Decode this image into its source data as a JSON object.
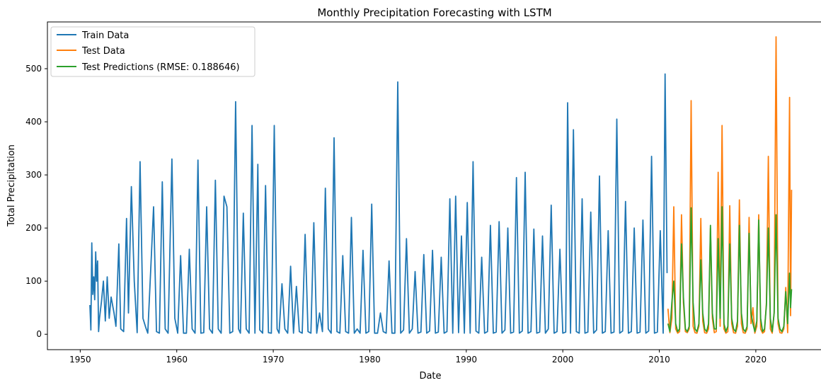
{
  "chart_data": {
    "type": "line",
    "title": "Monthly Precipitation Forecasting with LSTM",
    "xlabel": "Date",
    "ylabel": "Total Precipitation",
    "xlim": [
      1946.6,
      2026.9
    ],
    "ylim": [
      -29,
      588
    ],
    "xticks": [
      1950,
      1960,
      1970,
      1980,
      1990,
      2000,
      2010,
      2020
    ],
    "xtick_labels": [
      "1950",
      "1960",
      "1970",
      "1980",
      "1990",
      "2000",
      "2010",
      "2020"
    ],
    "yticks": [
      0,
      100,
      200,
      300,
      400,
      500
    ],
    "ytick_labels": [
      "0",
      "100",
      "200",
      "300",
      "400",
      "500"
    ],
    "grid": false,
    "legend_position": "top-left",
    "series": [
      {
        "name": "Train Data",
        "color": "#1f77b4",
        "x": [
          1951.0,
          1951.1,
          1951.2,
          1951.3,
          1951.4,
          1951.5,
          1951.6,
          1951.7,
          1951.8,
          1951.9,
          1952.0,
          1952.2,
          1952.4,
          1952.6,
          1952.8,
          1953.0,
          1953.2,
          1953.5,
          1953.7,
          1954.0,
          1954.2,
          1954.5,
          1954.8,
          1955.0,
          1955.3,
          1955.6,
          1955.9,
          1956.2,
          1956.5,
          1956.8,
          1957.0,
          1957.3,
          1957.6,
          1957.9,
          1958.2,
          1958.5,
          1958.8,
          1959.1,
          1959.5,
          1959.8,
          1960.1,
          1960.4,
          1960.7,
          1961.0,
          1961.3,
          1961.6,
          1961.9,
          1962.2,
          1962.5,
          1962.8,
          1963.1,
          1963.4,
          1963.7,
          1964.0,
          1964.3,
          1964.6,
          1964.9,
          1965.2,
          1965.5,
          1965.8,
          1966.1,
          1966.4,
          1966.6,
          1966.9,
          1967.2,
          1967.5,
          1967.8,
          1968.1,
          1968.4,
          1968.6,
          1968.9,
          1969.2,
          1969.5,
          1969.8,
          1970.1,
          1970.4,
          1970.6,
          1970.9,
          1971.2,
          1971.5,
          1971.8,
          1972.1,
          1972.4,
          1972.7,
          1973.0,
          1973.3,
          1973.6,
          1973.9,
          1974.2,
          1974.5,
          1974.8,
          1975.1,
          1975.4,
          1975.7,
          1976.0,
          1976.3,
          1976.6,
          1976.9,
          1977.2,
          1977.5,
          1977.8,
          1978.1,
          1978.4,
          1978.7,
          1979.0,
          1979.3,
          1979.6,
          1979.9,
          1980.2,
          1980.5,
          1980.8,
          1981.1,
          1981.4,
          1981.7,
          1982.0,
          1982.3,
          1982.6,
          1982.9,
          1983.2,
          1983.5,
          1983.8,
          1984.1,
          1984.4,
          1984.7,
          1985.0,
          1985.3,
          1985.6,
          1985.9,
          1986.2,
          1986.5,
          1986.8,
          1987.1,
          1987.4,
          1987.7,
          1988.0,
          1988.3,
          1988.6,
          1988.9,
          1989.2,
          1989.5,
          1989.8,
          1990.1,
          1990.4,
          1990.7,
          1991.0,
          1991.3,
          1991.6,
          1991.9,
          1992.2,
          1992.5,
          1992.8,
          1993.1,
          1993.4,
          1993.7,
          1994.0,
          1994.3,
          1994.6,
          1994.9,
          1995.2,
          1995.5,
          1995.8,
          1996.1,
          1996.4,
          1996.7,
          1997.0,
          1997.3,
          1997.6,
          1997.9,
          1998.2,
          1998.5,
          1998.8,
          1999.1,
          1999.4,
          1999.7,
          2000.0,
          2000.3,
          2000.5,
          2000.8,
          2001.1,
          2001.4,
          2001.7,
          2002.0,
          2002.3,
          2002.6,
          2002.9,
          2003.2,
          2003.5,
          2003.8,
          2004.1,
          2004.4,
          2004.7,
          2005.0,
          2005.3,
          2005.6,
          2005.9,
          2006.2,
          2006.5,
          2006.8,
          2007.1,
          2007.4,
          2007.7,
          2008.0,
          2008.3,
          2008.6,
          2008.9,
          2009.2,
          2009.5,
          2009.8,
          2010.1,
          2010.4,
          2010.6,
          2010.8
        ],
        "y": [
          55,
          8,
          172,
          75,
          108,
          65,
          155,
          100,
          138,
          5,
          30,
          62,
          100,
          25,
          108,
          30,
          70,
          40,
          15,
          170,
          10,
          5,
          218,
          40,
          278,
          100,
          3,
          325,
          30,
          12,
          2,
          120,
          240,
          5,
          2,
          287,
          10,
          2,
          330,
          30,
          2,
          148,
          2,
          2,
          160,
          10,
          2,
          328,
          2,
          3,
          240,
          10,
          2,
          290,
          10,
          2,
          260,
          240,
          2,
          5,
          438,
          10,
          2,
          228,
          10,
          2,
          393,
          2,
          320,
          8,
          2,
          280,
          3,
          2,
          393,
          10,
          2,
          95,
          10,
          2,
          128,
          2,
          90,
          5,
          2,
          188,
          5,
          2,
          210,
          2,
          40,
          5,
          275,
          10,
          2,
          370,
          5,
          2,
          148,
          5,
          2,
          220,
          2,
          10,
          2,
          158,
          2,
          5,
          245,
          2,
          2,
          40,
          5,
          2,
          138,
          2,
          2,
          475,
          2,
          8,
          180,
          2,
          10,
          118,
          2,
          4,
          150,
          2,
          6,
          158,
          2,
          4,
          145,
          2,
          5,
          255,
          2,
          260,
          3,
          185,
          2,
          248,
          2,
          325,
          6,
          2,
          145,
          2,
          5,
          205,
          2,
          4,
          212,
          2,
          8,
          200,
          2,
          4,
          295,
          2,
          6,
          305,
          2,
          5,
          198,
          2,
          4,
          185,
          2,
          10,
          243,
          2,
          5,
          160,
          2,
          4,
          436,
          2,
          385,
          5,
          2,
          255,
          2,
          4,
          230,
          2,
          8,
          298,
          2,
          5,
          195,
          2,
          4,
          405,
          2,
          6,
          250,
          2,
          5,
          200,
          2,
          4,
          215,
          2,
          6,
          335,
          2,
          4,
          195,
          2,
          490,
          115
        ]
      },
      {
        "name": "Test Data",
        "color": "#ff7f0e",
        "x": [
          2010.9,
          2011.1,
          2011.3,
          2011.5,
          2011.7,
          2011.9,
          2012.1,
          2012.3,
          2012.5,
          2012.7,
          2012.9,
          2013.1,
          2013.3,
          2013.5,
          2013.7,
          2013.9,
          2014.1,
          2014.3,
          2014.5,
          2014.7,
          2014.9,
          2015.1,
          2015.3,
          2015.5,
          2015.7,
          2015.9,
          2016.1,
          2016.3,
          2016.5,
          2016.7,
          2016.9,
          2017.1,
          2017.3,
          2017.5,
          2017.7,
          2017.9,
          2018.1,
          2018.3,
          2018.5,
          2018.7,
          2018.9,
          2019.1,
          2019.3,
          2019.5,
          2019.7,
          2019.9,
          2020.1,
          2020.3,
          2020.5,
          2020.7,
          2020.9,
          2021.1,
          2021.3,
          2021.5,
          2021.7,
          2021.9,
          2022.1,
          2022.3,
          2022.5,
          2022.7,
          2022.9,
          2023.1,
          2023.3,
          2023.5,
          2023.6,
          2023.7
        ],
        "y": [
          48,
          3,
          30,
          240,
          10,
          2,
          5,
          225,
          60,
          5,
          3,
          10,
          440,
          15,
          3,
          2,
          15,
          218,
          25,
          3,
          2,
          10,
          200,
          30,
          3,
          5,
          305,
          15,
          393,
          10,
          2,
          5,
          242,
          20,
          3,
          2,
          15,
          253,
          20,
          3,
          2,
          10,
          220,
          20,
          50,
          2,
          15,
          225,
          10,
          2,
          5,
          60,
          335,
          10,
          2,
          40,
          560,
          20,
          3,
          2,
          10,
          88,
          3,
          446,
          35,
          272
        ]
      },
      {
        "name": "Test Predictions (RMSE: 0.188646)",
        "color": "#2ca02c",
        "x": [
          2010.9,
          2011.1,
          2011.3,
          2011.5,
          2011.7,
          2011.9,
          2012.1,
          2012.3,
          2012.5,
          2012.7,
          2012.9,
          2013.1,
          2013.3,
          2013.5,
          2013.7,
          2013.9,
          2014.1,
          2014.3,
          2014.5,
          2014.7,
          2014.9,
          2015.1,
          2015.3,
          2015.5,
          2015.7,
          2015.9,
          2016.1,
          2016.3,
          2016.5,
          2016.7,
          2016.9,
          2017.1,
          2017.3,
          2017.5,
          2017.7,
          2017.9,
          2018.1,
          2018.3,
          2018.5,
          2018.7,
          2018.9,
          2019.1,
          2019.3,
          2019.5,
          2019.7,
          2019.9,
          2020.1,
          2020.3,
          2020.5,
          2020.7,
          2020.9,
          2021.1,
          2021.3,
          2021.5,
          2021.7,
          2021.9,
          2022.1,
          2022.3,
          2022.5,
          2022.7,
          2022.9,
          2023.1,
          2023.3,
          2023.5,
          2023.6,
          2023.7
        ],
        "y": [
          20,
          5,
          60,
          100,
          20,
          5,
          10,
          170,
          70,
          10,
          5,
          15,
          238,
          60,
          10,
          5,
          20,
          140,
          40,
          10,
          5,
          20,
          205,
          40,
          10,
          10,
          180,
          30,
          240,
          20,
          5,
          15,
          170,
          30,
          10,
          5,
          25,
          205,
          40,
          10,
          5,
          15,
          190,
          40,
          20,
          5,
          25,
          215,
          30,
          5,
          10,
          55,
          200,
          30,
          5,
          40,
          225,
          30,
          10,
          5,
          15,
          80,
          20,
          115,
          50,
          85
        ]
      }
    ]
  }
}
